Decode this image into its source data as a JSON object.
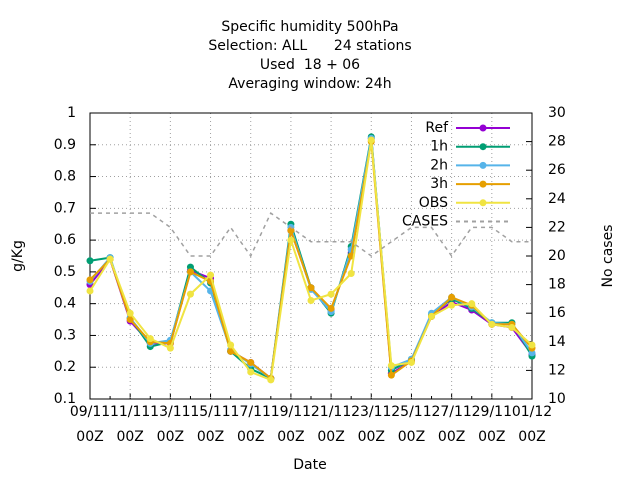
{
  "chart_data": {
    "type": "line",
    "title_lines": [
      "Specific humidity 500hPa",
      "Selection: ALL      24 stations",
      "Used  18 + 06",
      "Averaging window: 24h"
    ],
    "xlabel": "Date",
    "ylabel": "g/Kg",
    "y2label": "No cases",
    "categories": [
      "09/11\n00Z",
      null,
      "11/11\n00Z",
      null,
      "13/11\n00Z",
      null,
      "15/11\n00Z",
      null,
      "17/11\n00Z",
      null,
      "19/11\n00Z",
      null,
      "21/11\n00Z",
      null,
      "23/11\n00Z",
      null,
      "25/11\n00Z",
      null,
      "27/11\n00Z",
      null,
      "29/11\n00Z",
      null,
      "01/12\n00Z"
    ],
    "ylim": [
      0.1,
      1
    ],
    "yticks": [
      0.1,
      0.2,
      0.3,
      0.4,
      0.5,
      0.6,
      0.7,
      0.8,
      0.9,
      1
    ],
    "y2lim": [
      10,
      30
    ],
    "y2ticks": [
      10,
      12,
      14,
      16,
      18,
      20,
      22,
      24,
      26,
      28,
      30
    ],
    "grid": true,
    "legend": "top-right",
    "series": [
      {
        "name": "Ref",
        "color": "#9400d3",
        "values": [
          0.46,
          0.54,
          0.345,
          0.275,
          0.275,
          0.505,
          0.48,
          0.25,
          0.215,
          0.165,
          0.63,
          0.45,
          0.38,
          0.56,
          0.92,
          0.18,
          0.22,
          0.36,
          0.405,
          0.38,
          0.335,
          0.325,
          0.24
        ]
      },
      {
        "name": "1h",
        "color": "#009e73",
        "values": [
          0.535,
          0.545,
          0.355,
          0.265,
          0.28,
          0.515,
          0.465,
          0.25,
          0.195,
          0.165,
          0.65,
          0.45,
          0.37,
          0.58,
          0.925,
          0.19,
          0.225,
          0.365,
          0.415,
          0.385,
          0.34,
          0.34,
          0.235
        ]
      },
      {
        "name": "2h",
        "color": "#56b4e9",
        "values": [
          0.47,
          0.545,
          0.355,
          0.275,
          0.285,
          0.5,
          0.44,
          0.255,
          0.21,
          0.165,
          0.64,
          0.445,
          0.375,
          0.57,
          0.92,
          0.2,
          0.225,
          0.37,
          0.42,
          0.39,
          0.34,
          0.335,
          0.245
        ]
      },
      {
        "name": "3h",
        "color": "#e69f00",
        "values": [
          0.475,
          0.54,
          0.35,
          0.28,
          0.275,
          0.5,
          0.47,
          0.25,
          0.215,
          0.165,
          0.63,
          0.45,
          0.385,
          0.55,
          0.91,
          0.175,
          0.22,
          0.36,
          0.42,
          0.395,
          0.335,
          0.335,
          0.26
        ]
      },
      {
        "name": "OBS",
        "color": "#f0e442",
        "values": [
          0.44,
          0.54,
          0.37,
          0.29,
          0.26,
          0.43,
          0.49,
          0.27,
          0.185,
          0.16,
          0.6,
          0.41,
          0.43,
          0.495,
          0.915,
          0.205,
          0.215,
          0.36,
          0.395,
          0.4,
          0.335,
          0.325,
          0.27
        ]
      },
      {
        "name": "CASES",
        "color": "#a0a0a0",
        "axis": "y2",
        "dashed": true,
        "values": [
          23,
          23,
          23,
          23,
          22,
          20,
          20,
          22,
          20,
          23,
          22,
          21,
          21,
          21,
          20,
          21,
          22,
          22,
          20,
          22,
          22,
          21,
          21
        ]
      }
    ]
  }
}
